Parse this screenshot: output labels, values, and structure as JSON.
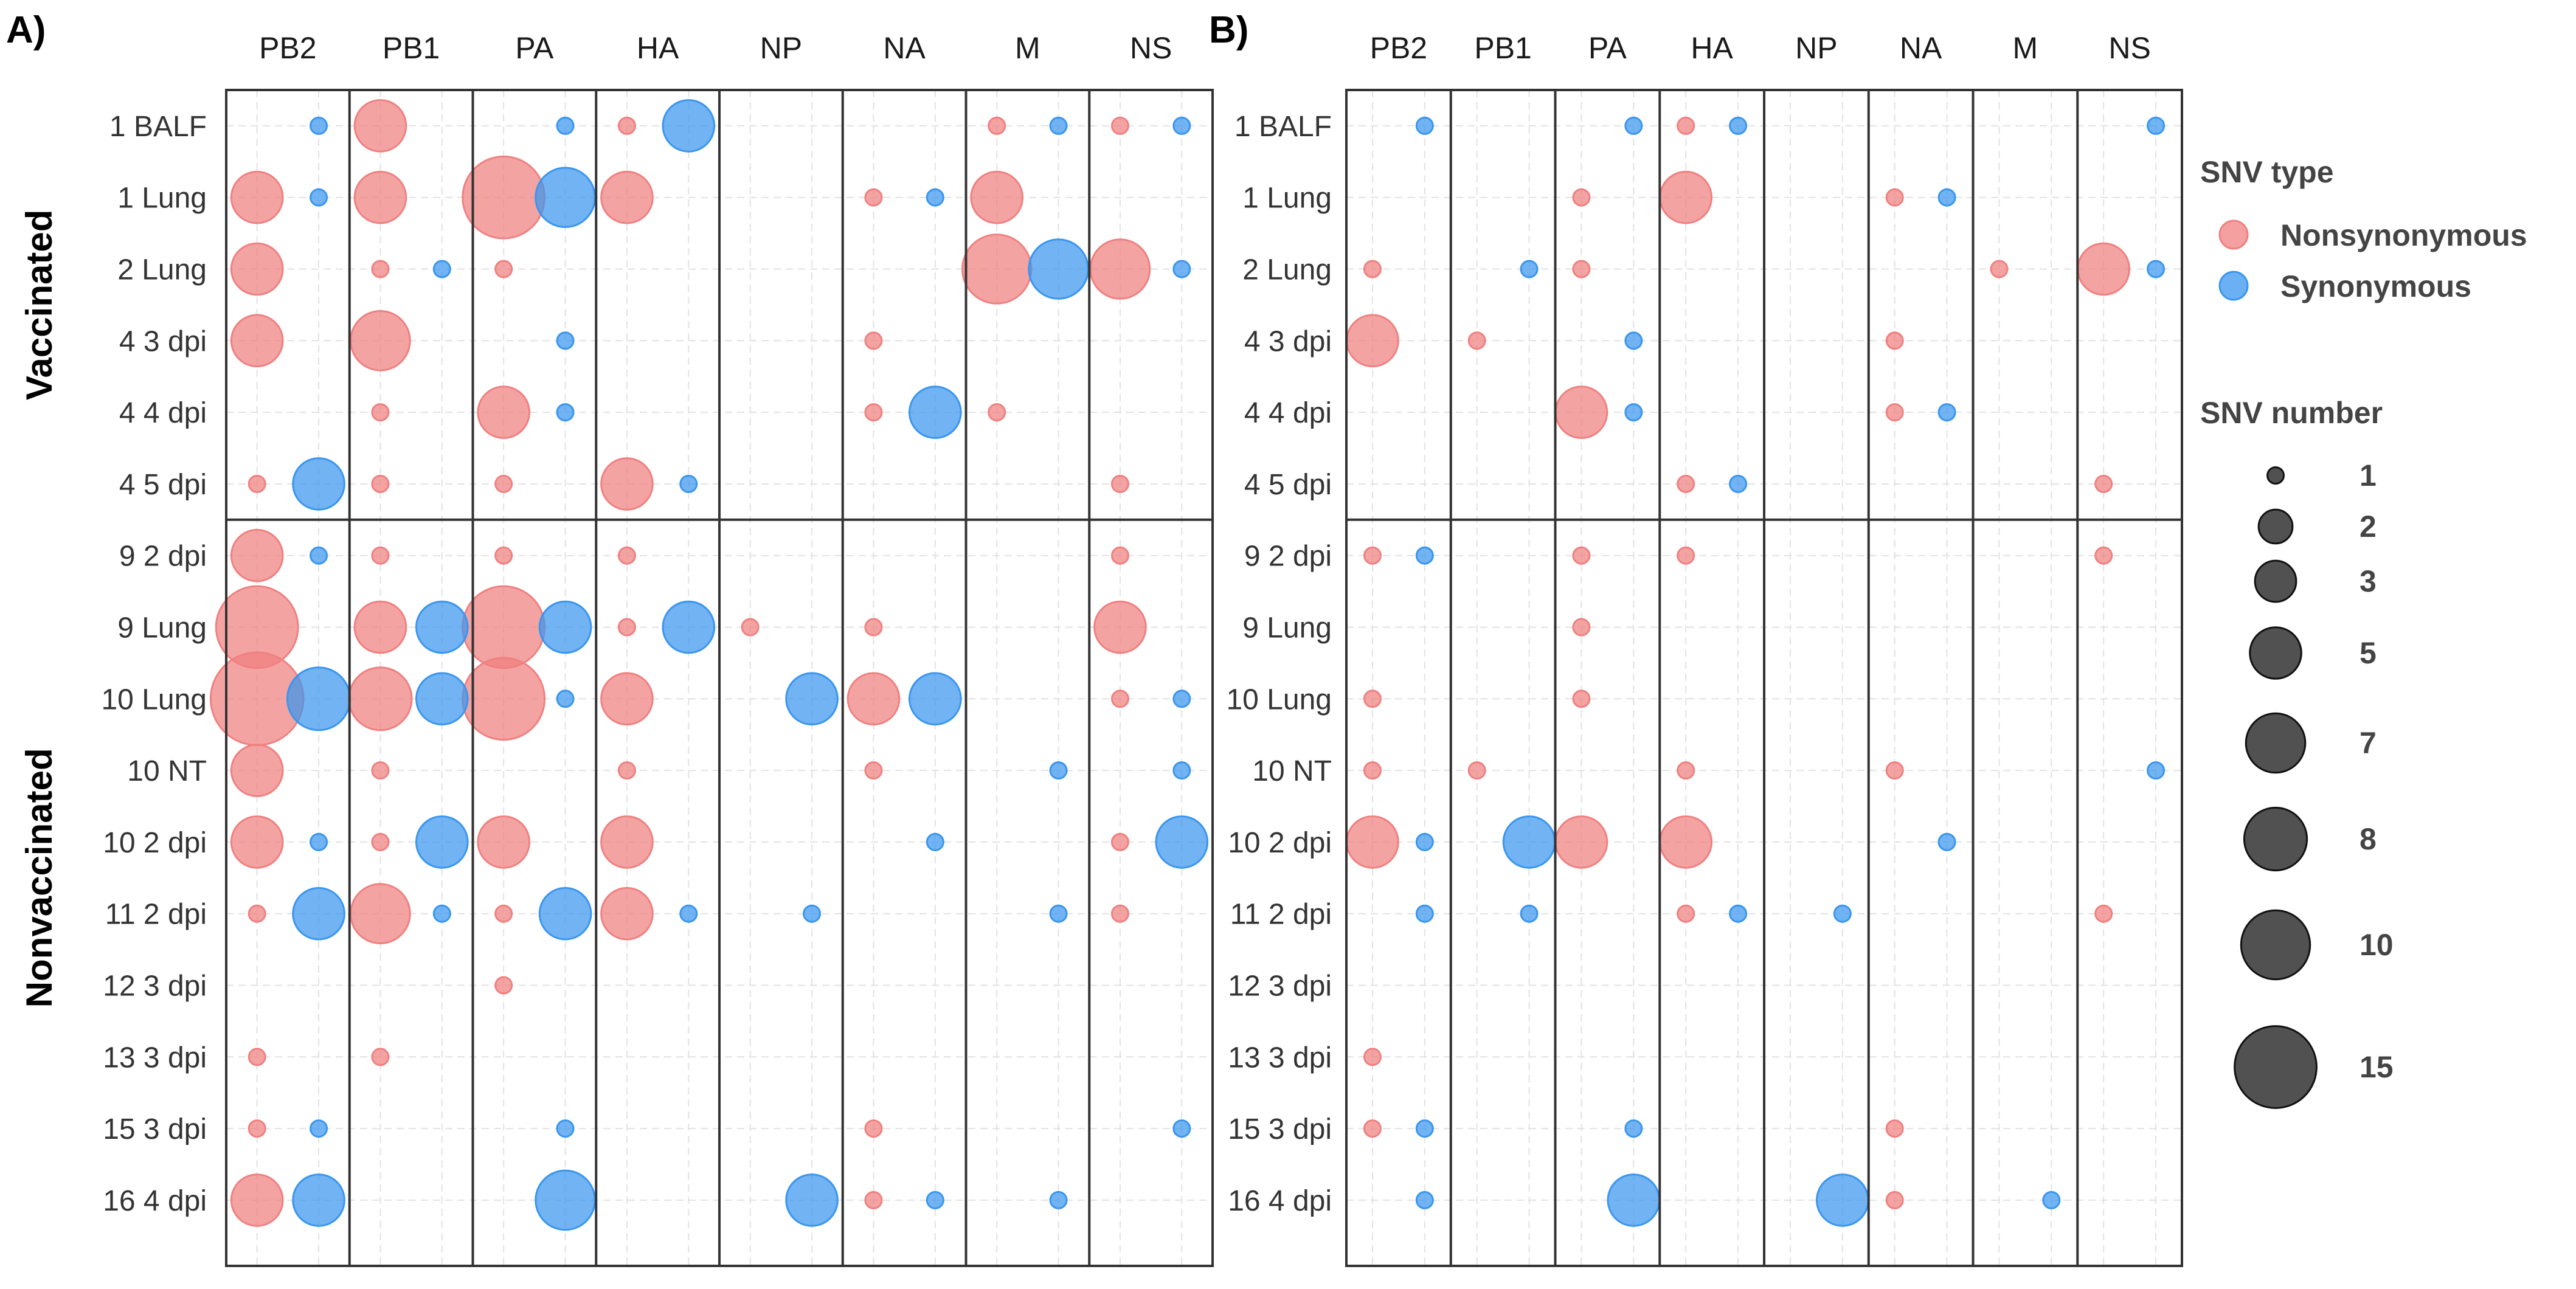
{
  "chart_data": {
    "type": "bubble",
    "genes": [
      "PB2",
      "PB1",
      "PA",
      "HA",
      "NP",
      "NA",
      "M",
      "NS"
    ],
    "groups": [
      {
        "name": "Vaccinated",
        "samples": [
          "1 BALF",
          "1 Lung",
          "2 Lung",
          "4 3 dpi",
          "4 4 dpi",
          "4 5 dpi"
        ]
      },
      {
        "name": "Nonvaccinated",
        "samples": [
          "9 2 dpi",
          "9 Lung",
          "10 Lung",
          "10 NT",
          "10 2 dpi",
          "11 2 dpi",
          "12 3 dpi",
          "13 3 dpi",
          "15 3 dpi",
          "16 4 dpi"
        ]
      }
    ],
    "legend": {
      "type_title": "SNV type",
      "types": [
        {
          "name": "Nonsynonymous",
          "color": "#f08080"
        },
        {
          "name": "Synonymous",
          "color": "#3a96ee"
        }
      ],
      "size_title": "SNV number",
      "sizes": [
        1,
        2,
        3,
        5,
        7,
        8,
        10,
        15
      ]
    },
    "panels": [
      {
        "label": "A)",
        "points": [
          [
            "1 BALF",
            "PB2",
            "S",
            1
          ],
          [
            "1 BALF",
            "PB1",
            "N",
            5
          ],
          [
            "1 BALF",
            "PA",
            "S",
            1
          ],
          [
            "1 BALF",
            "HA",
            "N",
            1
          ],
          [
            "1 BALF",
            "HA",
            "S",
            5
          ],
          [
            "1 BALF",
            "M",
            "N",
            1
          ],
          [
            "1 BALF",
            "M",
            "S",
            1
          ],
          [
            "1 BALF",
            "NS",
            "N",
            1
          ],
          [
            "1 BALF",
            "NS",
            "S",
            1
          ],
          [
            "1 Lung",
            "PB2",
            "N",
            5
          ],
          [
            "1 Lung",
            "PB2",
            "S",
            1
          ],
          [
            "1 Lung",
            "PB1",
            "N",
            5
          ],
          [
            "1 Lung",
            "PA",
            "N",
            15
          ],
          [
            "1 Lung",
            "PA",
            "S",
            7
          ],
          [
            "1 Lung",
            "HA",
            "N",
            5
          ],
          [
            "1 Lung",
            "NA",
            "N",
            1
          ],
          [
            "1 Lung",
            "NA",
            "S",
            1
          ],
          [
            "1 Lung",
            "M",
            "N",
            5
          ],
          [
            "2 Lung",
            "PB2",
            "N",
            5
          ],
          [
            "2 Lung",
            "PB1",
            "N",
            1
          ],
          [
            "2 Lung",
            "PB1",
            "S",
            1
          ],
          [
            "2 Lung",
            "PA",
            "N",
            1
          ],
          [
            "2 Lung",
            "M",
            "N",
            10
          ],
          [
            "2 Lung",
            "M",
            "S",
            7
          ],
          [
            "2 Lung",
            "NS",
            "N",
            7
          ],
          [
            "2 Lung",
            "NS",
            "S",
            1
          ],
          [
            "4 3 dpi",
            "PB2",
            "N",
            5
          ],
          [
            "4 3 dpi",
            "PB1",
            "N",
            7
          ],
          [
            "4 3 dpi",
            "PA",
            "S",
            1
          ],
          [
            "4 3 dpi",
            "NA",
            "N",
            1
          ],
          [
            "4 4 dpi",
            "PB1",
            "N",
            1
          ],
          [
            "4 4 dpi",
            "PA",
            "N",
            5
          ],
          [
            "4 4 dpi",
            "PA",
            "S",
            1
          ],
          [
            "4 4 dpi",
            "NA",
            "N",
            1
          ],
          [
            "4 4 dpi",
            "NA",
            "S",
            5
          ],
          [
            "4 4 dpi",
            "M",
            "N",
            1
          ],
          [
            "4 5 dpi",
            "PB2",
            "N",
            1
          ],
          [
            "4 5 dpi",
            "PB2",
            "S",
            5
          ],
          [
            "4 5 dpi",
            "PB1",
            "N",
            1
          ],
          [
            "4 5 dpi",
            "PA",
            "N",
            1
          ],
          [
            "4 5 dpi",
            "HA",
            "N",
            5
          ],
          [
            "4 5 dpi",
            "HA",
            "S",
            1
          ],
          [
            "4 5 dpi",
            "NS",
            "N",
            1
          ],
          [
            "9 2 dpi",
            "PB2",
            "N",
            5
          ],
          [
            "9 2 dpi",
            "PB2",
            "S",
            1
          ],
          [
            "9 2 dpi",
            "PB1",
            "N",
            1
          ],
          [
            "9 2 dpi",
            "PA",
            "N",
            1
          ],
          [
            "9 2 dpi",
            "HA",
            "N",
            1
          ],
          [
            "9 2 dpi",
            "NS",
            "N",
            1
          ],
          [
            "9 Lung",
            "PB2",
            "N",
            15
          ],
          [
            "9 Lung",
            "PB1",
            "N",
            5
          ],
          [
            "9 Lung",
            "PB1",
            "S",
            5
          ],
          [
            "9 Lung",
            "PA",
            "N",
            15
          ],
          [
            "9 Lung",
            "PA",
            "S",
            5
          ],
          [
            "9 Lung",
            "HA",
            "N",
            1
          ],
          [
            "9 Lung",
            "HA",
            "S",
            5
          ],
          [
            "9 Lung",
            "NP",
            "N",
            1
          ],
          [
            "9 Lung",
            "NA",
            "N",
            1
          ],
          [
            "9 Lung",
            "NS",
            "N",
            5
          ],
          [
            "10 Lung",
            "PB2",
            "N",
            20
          ],
          [
            "10 Lung",
            "PB2",
            "S",
            8
          ],
          [
            "10 Lung",
            "PB1",
            "N",
            8
          ],
          [
            "10 Lung",
            "PB1",
            "S",
            5
          ],
          [
            "10 Lung",
            "PA",
            "N",
            15
          ],
          [
            "10 Lung",
            "PA",
            "S",
            1
          ],
          [
            "10 Lung",
            "HA",
            "N",
            5
          ],
          [
            "10 Lung",
            "NP",
            "S",
            5
          ],
          [
            "10 Lung",
            "NA",
            "N",
            5
          ],
          [
            "10 Lung",
            "NA",
            "S",
            5
          ],
          [
            "10 Lung",
            "NS",
            "N",
            1
          ],
          [
            "10 Lung",
            "NS",
            "S",
            1
          ],
          [
            "10 NT",
            "PB2",
            "N",
            5
          ],
          [
            "10 NT",
            "PB1",
            "N",
            1
          ],
          [
            "10 NT",
            "HA",
            "N",
            1
          ],
          [
            "10 NT",
            "NA",
            "N",
            1
          ],
          [
            "10 NT",
            "M",
            "S",
            1
          ],
          [
            "10 NT",
            "NS",
            "S",
            1
          ],
          [
            "10 2 dpi",
            "PB2",
            "N",
            5
          ],
          [
            "10 2 dpi",
            "PB2",
            "S",
            1
          ],
          [
            "10 2 dpi",
            "PB1",
            "N",
            1
          ],
          [
            "10 2 dpi",
            "PB1",
            "S",
            5
          ],
          [
            "10 2 dpi",
            "PA",
            "N",
            5
          ],
          [
            "10 2 dpi",
            "HA",
            "N",
            5
          ],
          [
            "10 2 dpi",
            "NA",
            "S",
            1
          ],
          [
            "10 2 dpi",
            "NS",
            "N",
            1
          ],
          [
            "10 2 dpi",
            "NS",
            "S",
            5
          ],
          [
            "11 2 dpi",
            "PB2",
            "N",
            1
          ],
          [
            "11 2 dpi",
            "PB2",
            "S",
            5
          ],
          [
            "11 2 dpi",
            "PB1",
            "N",
            7
          ],
          [
            "11 2 dpi",
            "PB1",
            "S",
            1
          ],
          [
            "11 2 dpi",
            "PA",
            "N",
            1
          ],
          [
            "11 2 dpi",
            "PA",
            "S",
            5
          ],
          [
            "11 2 dpi",
            "HA",
            "N",
            5
          ],
          [
            "11 2 dpi",
            "HA",
            "S",
            1
          ],
          [
            "11 2 dpi",
            "NP",
            "S",
            1
          ],
          [
            "11 2 dpi",
            "M",
            "S",
            1
          ],
          [
            "11 2 dpi",
            "NS",
            "N",
            1
          ],
          [
            "12 3 dpi",
            "PA",
            "N",
            1
          ],
          [
            "13 3 dpi",
            "PB2",
            "N",
            1
          ],
          [
            "13 3 dpi",
            "PB1",
            "N",
            1
          ],
          [
            "15 3 dpi",
            "PB2",
            "N",
            1
          ],
          [
            "15 3 dpi",
            "PB2",
            "S",
            1
          ],
          [
            "15 3 dpi",
            "PA",
            "S",
            1
          ],
          [
            "15 3 dpi",
            "NA",
            "N",
            1
          ],
          [
            "15 3 dpi",
            "NS",
            "S",
            1
          ],
          [
            "16 4 dpi",
            "PB2",
            "N",
            5
          ],
          [
            "16 4 dpi",
            "PB2",
            "S",
            5
          ],
          [
            "16 4 dpi",
            "PA",
            "S",
            7
          ],
          [
            "16 4 dpi",
            "NP",
            "S",
            5
          ],
          [
            "16 4 dpi",
            "NA",
            "N",
            1
          ],
          [
            "16 4 dpi",
            "NA",
            "S",
            1
          ],
          [
            "16 4 dpi",
            "M",
            "S",
            1
          ]
        ]
      },
      {
        "label": "B)",
        "points": [
          [
            "1 BALF",
            "PB2",
            "S",
            1
          ],
          [
            "1 BALF",
            "PA",
            "S",
            1
          ],
          [
            "1 BALF",
            "HA",
            "N",
            1
          ],
          [
            "1 BALF",
            "HA",
            "S",
            1
          ],
          [
            "1 BALF",
            "NS",
            "S",
            1
          ],
          [
            "1 Lung",
            "PA",
            "N",
            1
          ],
          [
            "1 Lung",
            "HA",
            "N",
            5
          ],
          [
            "1 Lung",
            "NA",
            "N",
            1
          ],
          [
            "1 Lung",
            "NA",
            "S",
            1
          ],
          [
            "2 Lung",
            "PB2",
            "N",
            1
          ],
          [
            "2 Lung",
            "PB1",
            "S",
            1
          ],
          [
            "2 Lung",
            "PA",
            "N",
            1
          ],
          [
            "2 Lung",
            "M",
            "N",
            1
          ],
          [
            "2 Lung",
            "NS",
            "N",
            5
          ],
          [
            "2 Lung",
            "NS",
            "S",
            1
          ],
          [
            "4 3 dpi",
            "PB2",
            "N",
            5
          ],
          [
            "4 3 dpi",
            "PB1",
            "N",
            1
          ],
          [
            "4 3 dpi",
            "PA",
            "S",
            1
          ],
          [
            "4 3 dpi",
            "NA",
            "N",
            1
          ],
          [
            "4 4 dpi",
            "PA",
            "N",
            5
          ],
          [
            "4 4 dpi",
            "PA",
            "S",
            1
          ],
          [
            "4 4 dpi",
            "NA",
            "N",
            1
          ],
          [
            "4 4 dpi",
            "NA",
            "S",
            1
          ],
          [
            "4 5 dpi",
            "HA",
            "N",
            1
          ],
          [
            "4 5 dpi",
            "HA",
            "S",
            1
          ],
          [
            "4 5 dpi",
            "NS",
            "N",
            1
          ],
          [
            "9 2 dpi",
            "PB2",
            "N",
            1
          ],
          [
            "9 2 dpi",
            "PB2",
            "S",
            1
          ],
          [
            "9 2 dpi",
            "PA",
            "N",
            1
          ],
          [
            "9 2 dpi",
            "HA",
            "N",
            1
          ],
          [
            "9 2 dpi",
            "NS",
            "N",
            1
          ],
          [
            "9 Lung",
            "PA",
            "N",
            1
          ],
          [
            "10 Lung",
            "PB2",
            "N",
            1
          ],
          [
            "10 Lung",
            "PA",
            "N",
            1
          ],
          [
            "10 NT",
            "PB2",
            "N",
            1
          ],
          [
            "10 NT",
            "PB1",
            "N",
            1
          ],
          [
            "10 NT",
            "HA",
            "N",
            1
          ],
          [
            "10 NT",
            "NA",
            "N",
            1
          ],
          [
            "10 NT",
            "NS",
            "S",
            1
          ],
          [
            "10 2 dpi",
            "PB2",
            "N",
            5
          ],
          [
            "10 2 dpi",
            "PB2",
            "S",
            1
          ],
          [
            "10 2 dpi",
            "PB1",
            "S",
            5
          ],
          [
            "10 2 dpi",
            "PA",
            "N",
            5
          ],
          [
            "10 2 dpi",
            "HA",
            "N",
            5
          ],
          [
            "10 2 dpi",
            "NA",
            "S",
            1
          ],
          [
            "11 2 dpi",
            "PB2",
            "S",
            1
          ],
          [
            "11 2 dpi",
            "PB1",
            "S",
            1
          ],
          [
            "11 2 dpi",
            "HA",
            "N",
            1
          ],
          [
            "11 2 dpi",
            "HA",
            "S",
            1
          ],
          [
            "11 2 dpi",
            "NP",
            "S",
            1
          ],
          [
            "11 2 dpi",
            "NS",
            "N",
            1
          ],
          [
            "13 3 dpi",
            "PB2",
            "N",
            1
          ],
          [
            "15 3 dpi",
            "PB2",
            "N",
            1
          ],
          [
            "15 3 dpi",
            "PB2",
            "S",
            1
          ],
          [
            "15 3 dpi",
            "PA",
            "S",
            1
          ],
          [
            "15 3 dpi",
            "NA",
            "N",
            1
          ],
          [
            "16 4 dpi",
            "PB2",
            "S",
            1
          ],
          [
            "16 4 dpi",
            "PA",
            "S",
            5
          ],
          [
            "16 4 dpi",
            "NP",
            "S",
            5
          ],
          [
            "16 4 dpi",
            "NA",
            "N",
            1
          ],
          [
            "16 4 dpi",
            "M",
            "S",
            1
          ]
        ]
      }
    ]
  }
}
